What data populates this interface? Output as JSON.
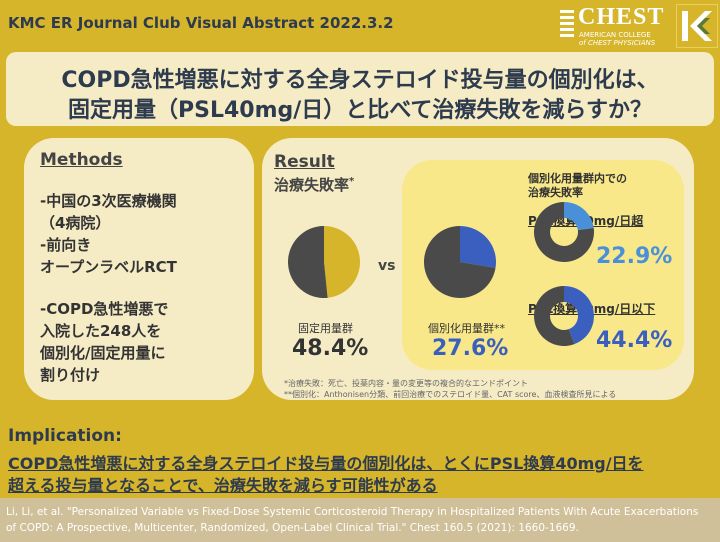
{
  "header": {
    "title": "KMC ER Journal Club Visual Abstract 2022.3.2",
    "logo_word": "CHEST",
    "logo_sub1": "AMERICAN COLLEGE",
    "logo_sub2": "of CHEST PHYSICIANS"
  },
  "title": {
    "line1": "COPD急性増悪に対する全身ステロイド投与量の個別化は、",
    "line2": "固定用量（PSL40mg/日）と比べて治療失敗を減らすか？"
  },
  "methods": {
    "heading": "Methods",
    "items": [
      "-中国の3次医療機関",
      "（4病院）",
      "-前向き",
      "オープンラベルRCT",
      "-COPD急性増悪で",
      "入院した248人を",
      "個別化/固定用量に",
      "割り付け"
    ]
  },
  "result": {
    "heading": "Result",
    "subheading": "治療失敗率",
    "subheading_mark": "*",
    "vs": "vs",
    "inner_title1": "個別化用量群内での",
    "inner_title2": "治療失敗率",
    "sub1_label": "PSL換算40mg/日超",
    "sub2_label": "PSL換算40mg/日以下",
    "notes": [
      "*治療失敗：死亡、投薬内容・量の変更等の複合的なエンドポイント",
      "**個別化：Anthonisen分類、前回治療でのステロイド量、CAT score、血液検査所見による"
    ]
  },
  "chart_data": [
    {
      "type": "pie",
      "label": "固定用量群",
      "values": [
        48.4,
        51.6
      ],
      "display": "48.4%",
      "colors": [
        "#d6b52b",
        "#4a4a4a"
      ]
    },
    {
      "type": "pie",
      "label": "個別化用量群**",
      "values": [
        27.6,
        72.4
      ],
      "display": "27.6%",
      "colors": [
        "#3a5fbf",
        "#4a4a4a"
      ]
    },
    {
      "type": "pie",
      "label": "PSL換算40mg/日超",
      "values": [
        22.9,
        77.1
      ],
      "display": "22.9%",
      "colors": [
        "#4a90d9",
        "#4a4a4a"
      ]
    },
    {
      "type": "pie",
      "label": "PSL換算40mg/日以下",
      "values": [
        44.4,
        55.6
      ],
      "display": "44.4%",
      "colors": [
        "#3a5fbf",
        "#4a4a4a"
      ]
    }
  ],
  "implication": {
    "heading": "Implication:",
    "line1": "COPD急性増悪に対する全身ステロイド投与量の個別化は、とくにPSL換算40mg/日を",
    "line2": "超える投与量となることで、治療失敗を減らす可能性がある"
  },
  "reference": {
    "line1": "Li, Li, et al. \"Personalized Variable vs Fixed-Dose Systemic Corticosteroid Therapy in Hospitalized Patients With Acute Exacerbations",
    "line2": "of COPD: A Prospective, Multicenter, Randomized, Open-Label Clinical Trial.\" Chest 160.5 (2021): 1660-1669."
  }
}
